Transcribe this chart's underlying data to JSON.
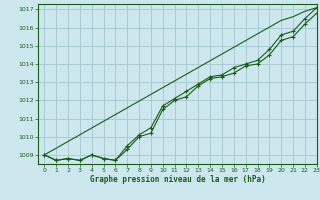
{
  "title": "Graphe pression niveau de la mer (hPa)",
  "bg_color": "#cce8ee",
  "grid_color": "#aaccd4",
  "line_color": "#1a5c1a",
  "xlim": [
    -0.5,
    23
  ],
  "ylim": [
    1008.5,
    1017.3
  ],
  "yticks": [
    1009,
    1010,
    1011,
    1012,
    1013,
    1014,
    1015,
    1016,
    1017
  ],
  "xticks": [
    0,
    1,
    2,
    3,
    4,
    5,
    6,
    7,
    8,
    9,
    10,
    11,
    12,
    13,
    14,
    15,
    16,
    17,
    18,
    19,
    20,
    21,
    22,
    23
  ],
  "series_data": [
    [
      1009.0,
      1008.7,
      1008.8,
      1008.7,
      1009.0,
      1008.8,
      1008.7,
      1009.3,
      1010.0,
      1010.2,
      1011.5,
      1012.0,
      1012.2,
      1012.8,
      1013.2,
      1013.3,
      1013.5,
      1013.9,
      1014.0,
      1014.5,
      1015.3,
      1015.5,
      1016.2,
      1016.8
    ],
    [
      1009.0,
      1008.7,
      1008.8,
      1008.7,
      1009.0,
      1008.8,
      1008.7,
      1009.5,
      1010.1,
      1010.5,
      1011.7,
      1012.1,
      1012.5,
      1012.9,
      1013.3,
      1013.4,
      1013.8,
      1014.0,
      1014.2,
      1014.8,
      1015.6,
      1015.8,
      1016.5,
      1017.1
    ]
  ],
  "smooth_line": [
    1009.0,
    1009.37,
    1009.74,
    1010.11,
    1010.48,
    1010.85,
    1011.22,
    1011.59,
    1011.96,
    1012.33,
    1012.7,
    1013.07,
    1013.44,
    1013.81,
    1014.18,
    1014.55,
    1014.92,
    1015.29,
    1015.66,
    1016.03,
    1016.4,
    1016.6,
    1016.9,
    1017.1
  ]
}
